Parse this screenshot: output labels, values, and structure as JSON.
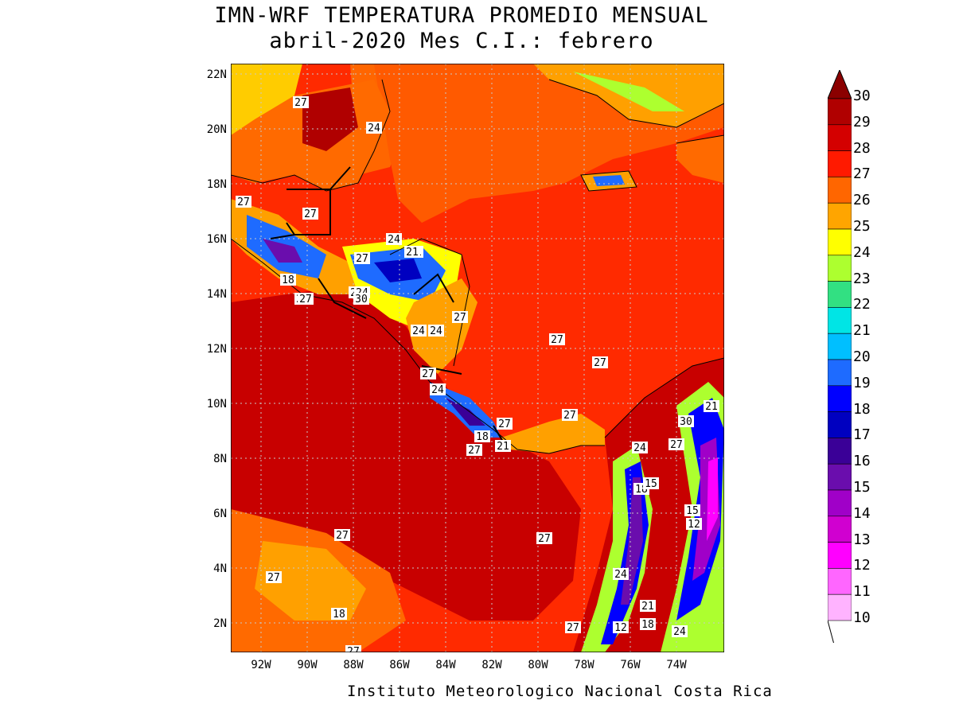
{
  "title": {
    "line1": "IMN-WRF  TEMPERATURA PROMEDIO MENSUAL",
    "line2": "abril-2020 Mes C.I.: febrero"
  },
  "footer": "Instituto Meteorologico Nacional Costa Rica",
  "lat_labels": [
    "22N",
    "20N",
    "18N",
    "16N",
    "14N",
    "12N",
    "10N",
    "8N",
    "6N",
    "4N",
    "2N"
  ],
  "lon_labels": [
    "92W",
    "90W",
    "88W",
    "86W",
    "84W",
    "82W",
    "80W",
    "78W",
    "76W",
    "74W"
  ],
  "colorbar": {
    "labels": [
      "30",
      "29",
      "28",
      "27",
      "26",
      "25",
      "24",
      "23",
      "22",
      "21",
      "20",
      "19",
      "18",
      "17",
      "16",
      "15",
      "14",
      "13",
      "12",
      "11",
      "10"
    ],
    "colors": [
      "#8b0000",
      "#b00000",
      "#d40000",
      "#ff1a00",
      "#ff6600",
      "#ffa500",
      "#ffff00",
      "#adff2f",
      "#32e082",
      "#00e5e5",
      "#00bfff",
      "#1e6bff",
      "#0000ff",
      "#0000c0",
      "#3a0097",
      "#6a0dad",
      "#a000c8",
      "#d000d0",
      "#ff00ff",
      "#ff66ff",
      "#ffb3ff"
    ]
  },
  "contour_labels": [
    "27",
    "24",
    "27",
    "27",
    "24",
    "21",
    "27",
    "24",
    "27",
    "21",
    "18",
    "27",
    "22",
    "24",
    "30",
    "27",
    "24",
    "27",
    "27",
    "27",
    "24",
    "27",
    "21",
    "30",
    "27",
    "18",
    "21",
    "27",
    "27",
    "24",
    "18",
    "15",
    "15",
    "12",
    "27",
    "27",
    "27",
    "18",
    "24",
    "21",
    "12",
    "18",
    "24",
    "27",
    "27"
  ],
  "map_colors": {
    "ocean_hot": "#e01200",
    "ocean_warm": "#ff3300",
    "gulf": "#ff6a00",
    "land_warm": "#ffa000",
    "highland_cool": "#1e6bff",
    "highland_cold": "#6a0dad"
  }
}
